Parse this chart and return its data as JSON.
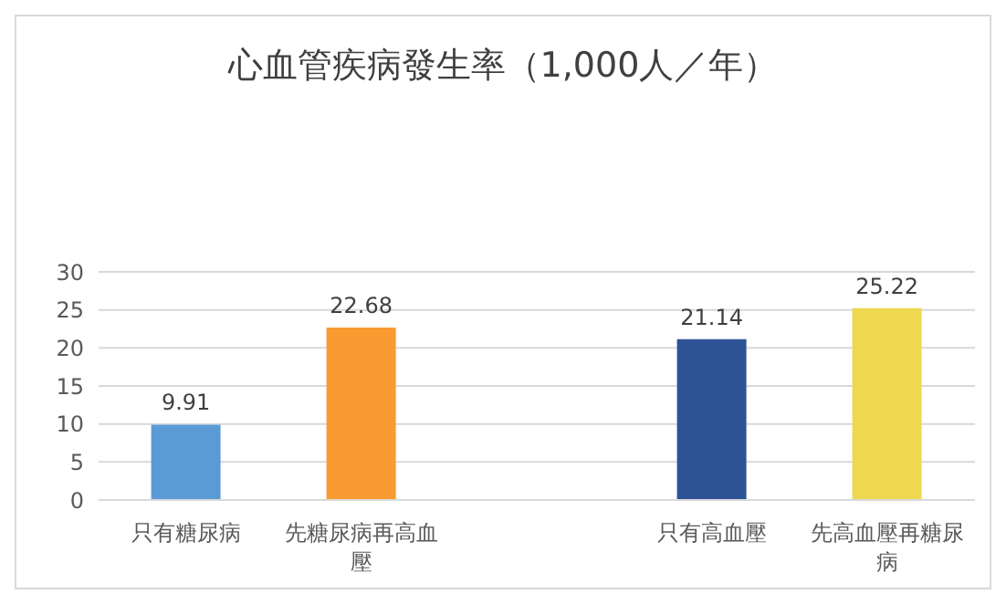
{
  "chart_data": {
    "type": "bar",
    "title": "心血管疾病發生率（1,000人／年）",
    "categories": [
      "只有糖尿病",
      "先糖尿病再高血壓",
      null,
      "只有高血壓",
      "先高血壓再糖尿病"
    ],
    "values": [
      9.91,
      22.68,
      null,
      21.14,
      25.22
    ],
    "colors": [
      "#5b9bd5",
      "#f99b30",
      "#a5a5a5",
      "#2e5395",
      "#eed84f"
    ],
    "ylim": [
      0,
      30
    ],
    "yticks": [
      0,
      5,
      10,
      15,
      20,
      25,
      30
    ],
    "grid": "y",
    "data_labels": true
  }
}
